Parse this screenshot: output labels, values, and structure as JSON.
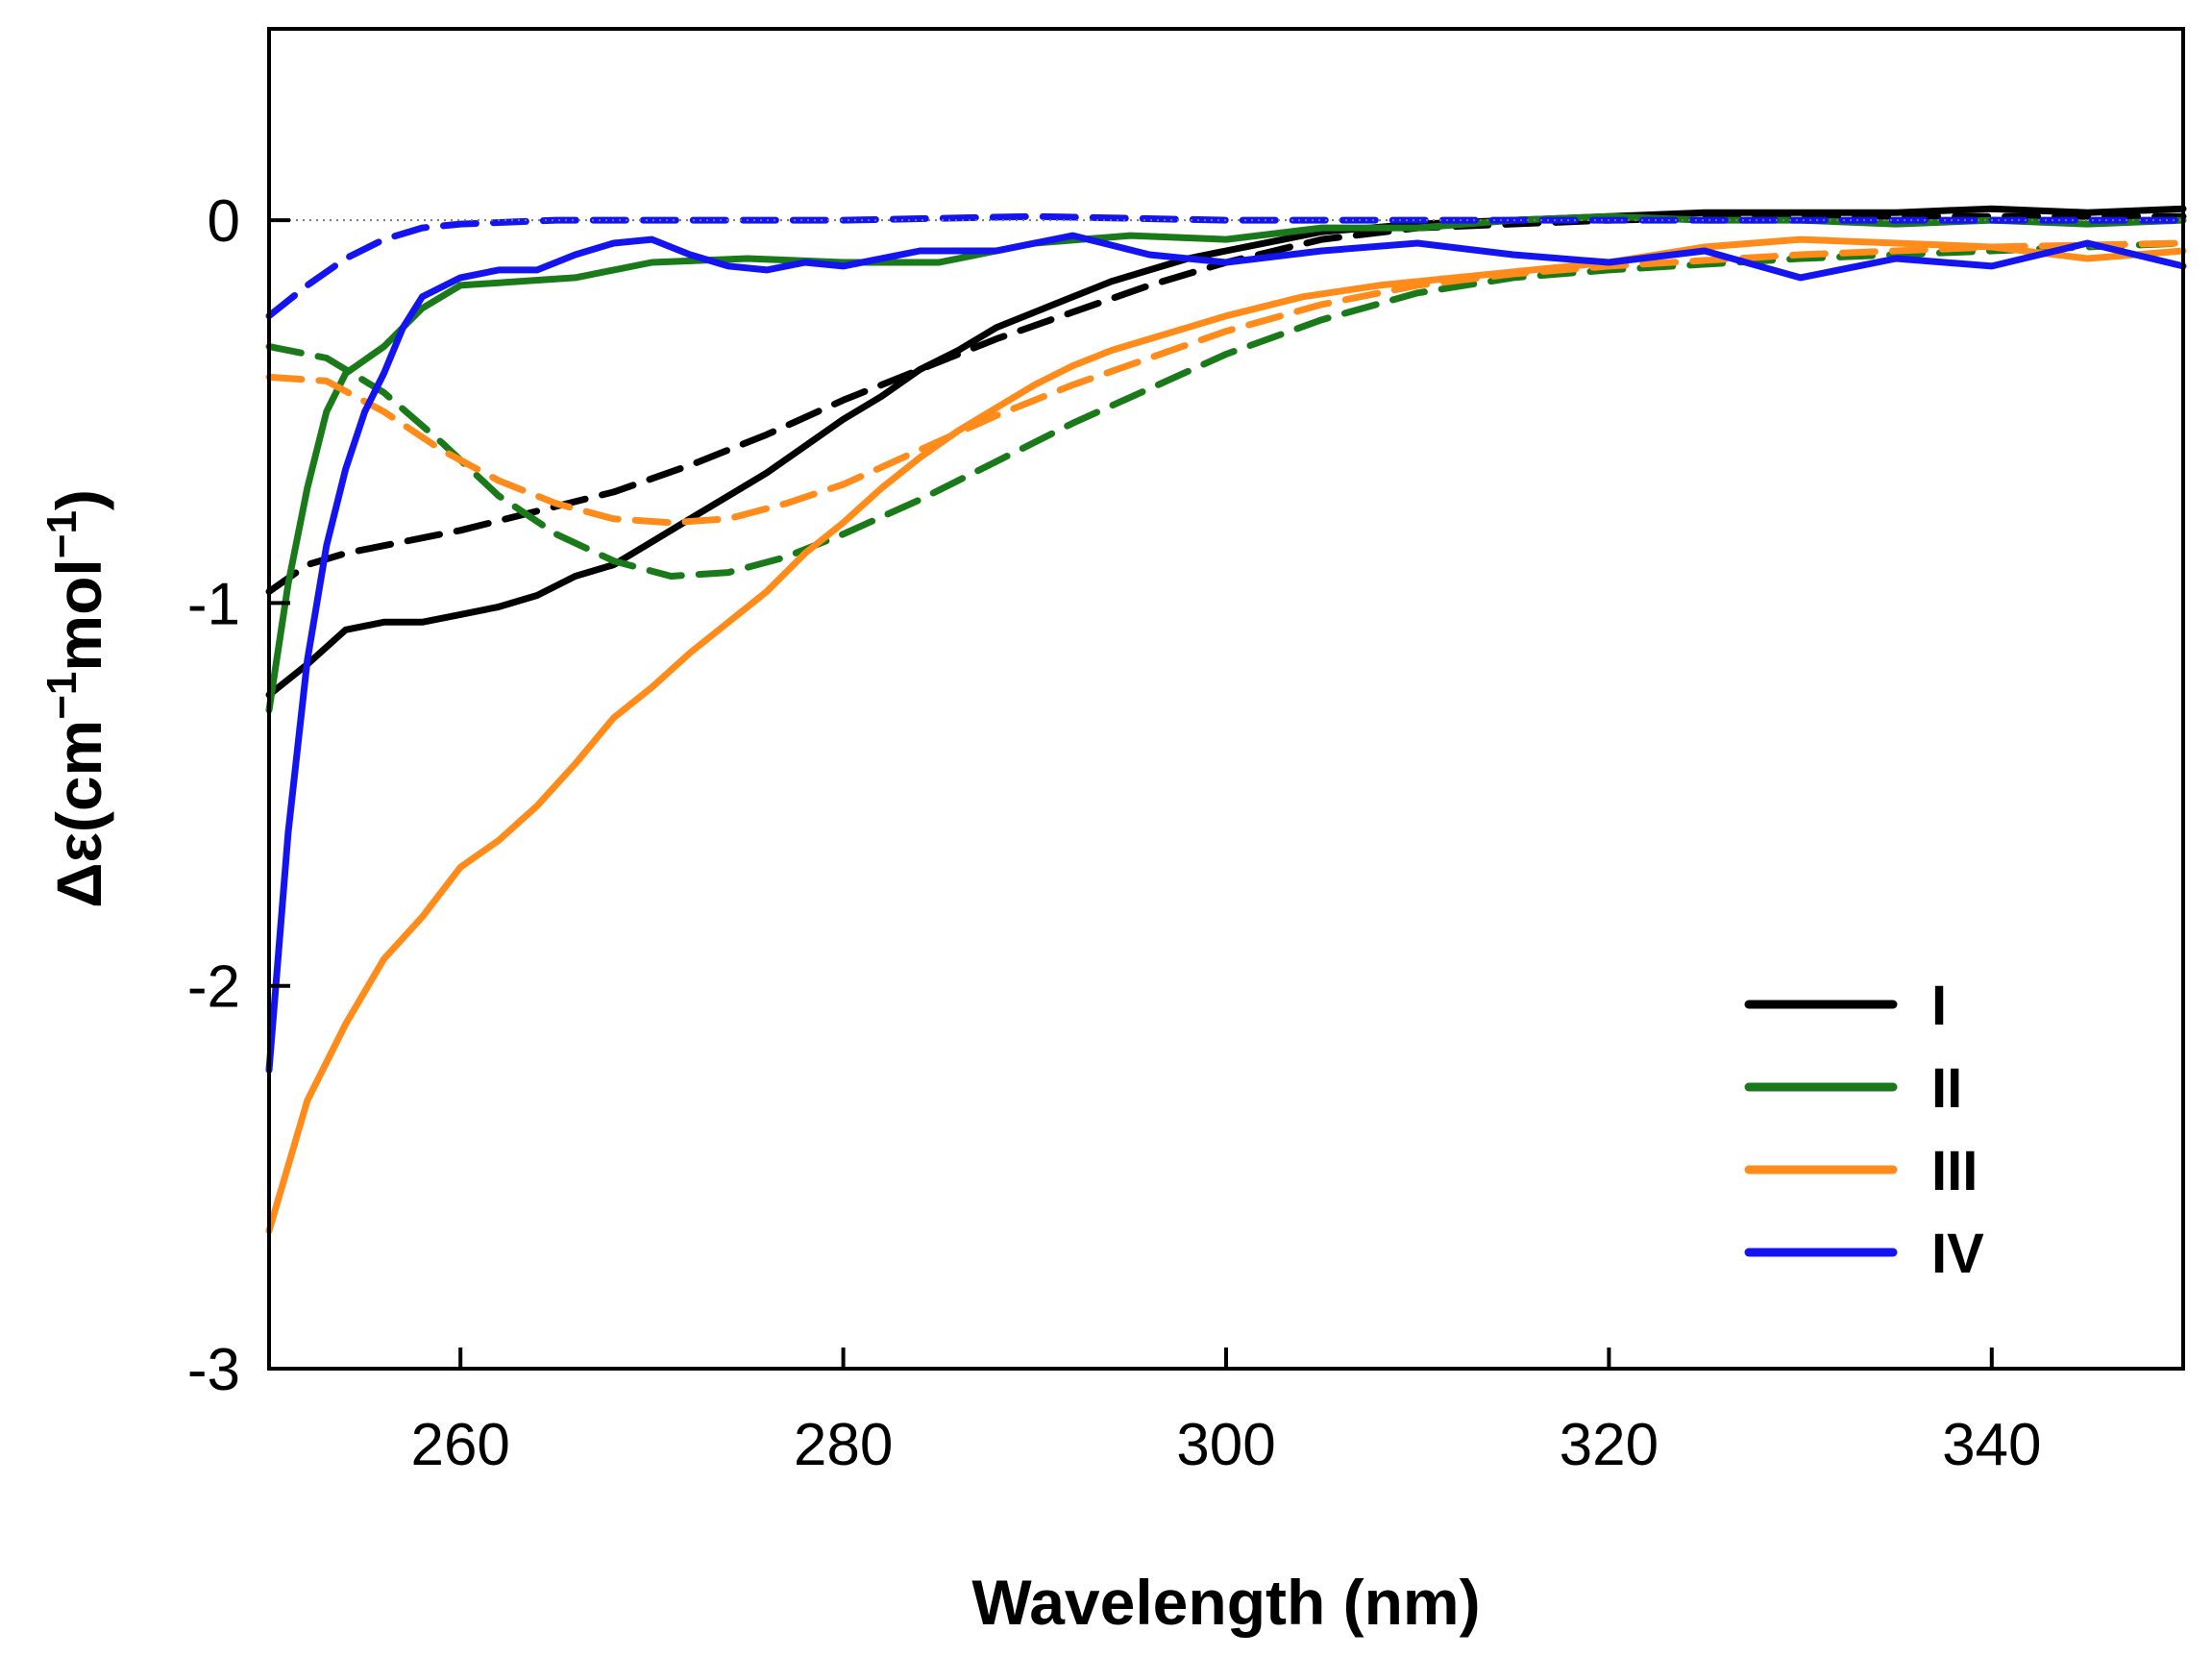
{
  "chart_data": {
    "type": "line",
    "title": "",
    "xlabel": "Wavelength (nm)",
    "ylabel_parts": [
      "Δε(cm",
      "−1",
      "mol",
      "−1",
      ")"
    ],
    "xlim": [
      250,
      350
    ],
    "ylim": [
      -3,
      0.5
    ],
    "xticks": [
      260,
      280,
      300,
      320,
      340
    ],
    "xtick_labels": [
      "260",
      "280",
      "300",
      "320",
      "340"
    ],
    "yticks": [
      0,
      -1,
      -2,
      -3
    ],
    "ytick_labels": [
      "0",
      "-1",
      "-2",
      "-3"
    ],
    "zero_line": true,
    "legend_position": "lower-right",
    "colors": {
      "I": "#000000",
      "II": "#1a7a1a",
      "III": "#ff8c1a",
      "IV": "#1414f0"
    },
    "series": [
      {
        "name": "I",
        "style": "solid",
        "points": [
          [
            250,
            -1.24
          ],
          [
            252,
            -1.16
          ],
          [
            254,
            -1.07
          ],
          [
            256,
            -1.05
          ],
          [
            258,
            -1.05
          ],
          [
            260,
            -1.03
          ],
          [
            262,
            -1.01
          ],
          [
            264,
            -0.98
          ],
          [
            266,
            -0.93
          ],
          [
            268,
            -0.9
          ],
          [
            270,
            -0.84
          ],
          [
            272,
            -0.78
          ],
          [
            274,
            -0.72
          ],
          [
            276,
            -0.66
          ],
          [
            278,
            -0.59
          ],
          [
            280,
            -0.52
          ],
          [
            282,
            -0.46
          ],
          [
            284,
            -0.39
          ],
          [
            286,
            -0.34
          ],
          [
            288,
            -0.28
          ],
          [
            290,
            -0.24
          ],
          [
            292,
            -0.2
          ],
          [
            294,
            -0.16
          ],
          [
            296,
            -0.13
          ],
          [
            298,
            -0.1
          ],
          [
            300,
            -0.08
          ],
          [
            305,
            -0.03
          ],
          [
            310,
            -0.01
          ],
          [
            315,
            0.0
          ],
          [
            320,
            0.01
          ],
          [
            325,
            0.02
          ],
          [
            330,
            0.02
          ],
          [
            335,
            0.02
          ],
          [
            340,
            0.03
          ],
          [
            345,
            0.02
          ],
          [
            350,
            0.03
          ]
        ]
      },
      {
        "name": "I",
        "style": "dashed",
        "points": [
          [
            250,
            -0.97
          ],
          [
            252,
            -0.9
          ],
          [
            254,
            -0.87
          ],
          [
            256,
            -0.85
          ],
          [
            258,
            -0.83
          ],
          [
            260,
            -0.81
          ],
          [
            264,
            -0.76
          ],
          [
            268,
            -0.71
          ],
          [
            272,
            -0.64
          ],
          [
            276,
            -0.56
          ],
          [
            280,
            -0.47
          ],
          [
            284,
            -0.39
          ],
          [
            288,
            -0.31
          ],
          [
            292,
            -0.24
          ],
          [
            296,
            -0.17
          ],
          [
            300,
            -0.11
          ],
          [
            305,
            -0.05
          ],
          [
            310,
            -0.02
          ],
          [
            320,
            0.0
          ],
          [
            330,
            0.01
          ],
          [
            340,
            0.01
          ],
          [
            350,
            0.01
          ]
        ]
      },
      {
        "name": "II",
        "style": "solid",
        "points": [
          [
            250,
            -1.28
          ],
          [
            251,
            -0.95
          ],
          [
            252,
            -0.7
          ],
          [
            253,
            -0.5
          ],
          [
            254,
            -0.4
          ],
          [
            256,
            -0.33
          ],
          [
            258,
            -0.23
          ],
          [
            260,
            -0.17
          ],
          [
            263,
            -0.16
          ],
          [
            266,
            -0.15
          ],
          [
            270,
            -0.11
          ],
          [
            275,
            -0.1
          ],
          [
            280,
            -0.11
          ],
          [
            285,
            -0.11
          ],
          [
            290,
            -0.06
          ],
          [
            295,
            -0.04
          ],
          [
            300,
            -0.05
          ],
          [
            305,
            -0.02
          ],
          [
            310,
            -0.02
          ],
          [
            315,
            0.0
          ],
          [
            320,
            0.01
          ],
          [
            325,
            0.0
          ],
          [
            330,
            0.0
          ],
          [
            335,
            -0.01
          ],
          [
            340,
            0.0
          ],
          [
            345,
            -0.01
          ],
          [
            350,
            0.0
          ]
        ]
      },
      {
        "name": "II",
        "style": "dashed",
        "points": [
          [
            250,
            -0.33
          ],
          [
            253,
            -0.36
          ],
          [
            256,
            -0.45
          ],
          [
            259,
            -0.58
          ],
          [
            262,
            -0.72
          ],
          [
            265,
            -0.82
          ],
          [
            268,
            -0.89
          ],
          [
            271,
            -0.93
          ],
          [
            274,
            -0.92
          ],
          [
            277,
            -0.88
          ],
          [
            280,
            -0.82
          ],
          [
            284,
            -0.73
          ],
          [
            288,
            -0.63
          ],
          [
            292,
            -0.53
          ],
          [
            296,
            -0.44
          ],
          [
            300,
            -0.35
          ],
          [
            305,
            -0.26
          ],
          [
            310,
            -0.19
          ],
          [
            315,
            -0.15
          ],
          [
            320,
            -0.13
          ],
          [
            330,
            -0.1
          ],
          [
            340,
            -0.08
          ],
          [
            350,
            -0.06
          ]
        ]
      },
      {
        "name": "III",
        "style": "solid",
        "points": [
          [
            250,
            -2.64
          ],
          [
            252,
            -2.3
          ],
          [
            254,
            -2.1
          ],
          [
            256,
            -1.93
          ],
          [
            258,
            -1.82
          ],
          [
            260,
            -1.69
          ],
          [
            262,
            -1.62
          ],
          [
            264,
            -1.53
          ],
          [
            266,
            -1.42
          ],
          [
            268,
            -1.3
          ],
          [
            270,
            -1.22
          ],
          [
            272,
            -1.13
          ],
          [
            274,
            -1.05
          ],
          [
            276,
            -0.97
          ],
          [
            278,
            -0.87
          ],
          [
            280,
            -0.79
          ],
          [
            282,
            -0.7
          ],
          [
            284,
            -0.62
          ],
          [
            286,
            -0.55
          ],
          [
            288,
            -0.49
          ],
          [
            290,
            -0.43
          ],
          [
            292,
            -0.38
          ],
          [
            294,
            -0.34
          ],
          [
            296,
            -0.31
          ],
          [
            298,
            -0.28
          ],
          [
            300,
            -0.25
          ],
          [
            304,
            -0.2
          ],
          [
            308,
            -0.17
          ],
          [
            312,
            -0.15
          ],
          [
            316,
            -0.13
          ],
          [
            320,
            -0.11
          ],
          [
            325,
            -0.07
          ],
          [
            330,
            -0.05
          ],
          [
            335,
            -0.06
          ],
          [
            340,
            -0.07
          ],
          [
            345,
            -0.1
          ],
          [
            350,
            -0.08
          ]
        ]
      },
      {
        "name": "III",
        "style": "dashed",
        "points": [
          [
            250,
            -0.41
          ],
          [
            253,
            -0.42
          ],
          [
            256,
            -0.5
          ],
          [
            259,
            -0.6
          ],
          [
            262,
            -0.68
          ],
          [
            265,
            -0.74
          ],
          [
            268,
            -0.78
          ],
          [
            271,
            -0.79
          ],
          [
            274,
            -0.78
          ],
          [
            277,
            -0.74
          ],
          [
            280,
            -0.69
          ],
          [
            284,
            -0.6
          ],
          [
            288,
            -0.51
          ],
          [
            292,
            -0.43
          ],
          [
            296,
            -0.36
          ],
          [
            300,
            -0.29
          ],
          [
            305,
            -0.22
          ],
          [
            310,
            -0.17
          ],
          [
            315,
            -0.14
          ],
          [
            320,
            -0.12
          ],
          [
            330,
            -0.09
          ],
          [
            340,
            -0.07
          ],
          [
            350,
            -0.06
          ]
        ]
      },
      {
        "name": "IV",
        "style": "solid",
        "points": [
          [
            250,
            -2.22
          ],
          [
            251,
            -1.6
          ],
          [
            252,
            -1.15
          ],
          [
            253,
            -0.85
          ],
          [
            254,
            -0.65
          ],
          [
            255,
            -0.5
          ],
          [
            256,
            -0.4
          ],
          [
            257,
            -0.28
          ],
          [
            258,
            -0.2
          ],
          [
            260,
            -0.15
          ],
          [
            262,
            -0.13
          ],
          [
            264,
            -0.13
          ],
          [
            266,
            -0.09
          ],
          [
            268,
            -0.06
          ],
          [
            270,
            -0.05
          ],
          [
            272,
            -0.09
          ],
          [
            274,
            -0.12
          ],
          [
            276,
            -0.13
          ],
          [
            278,
            -0.11
          ],
          [
            280,
            -0.12
          ],
          [
            284,
            -0.08
          ],
          [
            288,
            -0.08
          ],
          [
            292,
            -0.04
          ],
          [
            296,
            -0.09
          ],
          [
            300,
            -0.11
          ],
          [
            305,
            -0.08
          ],
          [
            310,
            -0.06
          ],
          [
            315,
            -0.09
          ],
          [
            320,
            -0.11
          ],
          [
            325,
            -0.08
          ],
          [
            330,
            -0.15
          ],
          [
            335,
            -0.1
          ],
          [
            340,
            -0.12
          ],
          [
            345,
            -0.06
          ],
          [
            350,
            -0.12
          ]
        ]
      },
      {
        "name": "IV",
        "style": "dashed",
        "points": [
          [
            250,
            -0.25
          ],
          [
            252,
            -0.17
          ],
          [
            254,
            -0.1
          ],
          [
            256,
            -0.05
          ],
          [
            258,
            -0.02
          ],
          [
            260,
            -0.01
          ],
          [
            265,
            0.0
          ],
          [
            270,
            0.0
          ],
          [
            280,
            0.0
          ],
          [
            290,
            0.01
          ],
          [
            300,
            0.0
          ],
          [
            310,
            0.0
          ],
          [
            320,
            0.0
          ],
          [
            330,
            0.0
          ],
          [
            340,
            0.0
          ],
          [
            350,
            0.0
          ]
        ]
      }
    ],
    "legend": [
      {
        "label": "I",
        "color_key": "I"
      },
      {
        "label": "II",
        "color_key": "II"
      },
      {
        "label": "III",
        "color_key": "III"
      },
      {
        "label": "IV",
        "color_key": "IV"
      }
    ]
  }
}
